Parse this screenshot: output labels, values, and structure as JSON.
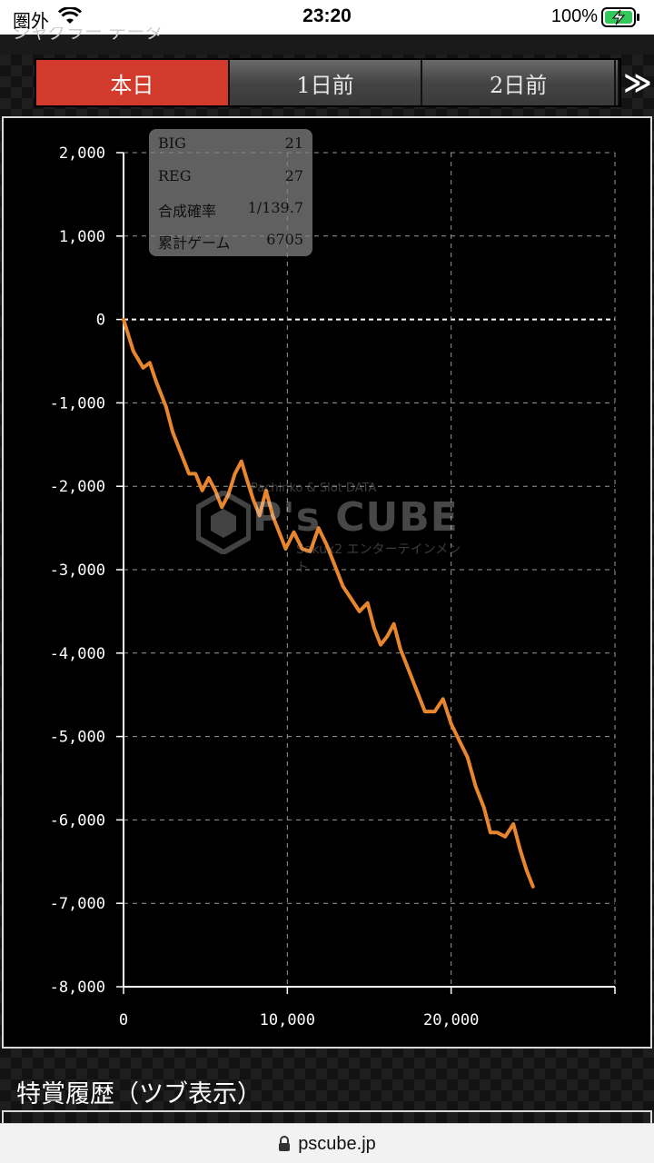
{
  "status_bar": {
    "carrier": "圏外",
    "time": "23:20",
    "battery_pct": "100%"
  },
  "top_strip": {
    "text": "ジャグラー データ"
  },
  "tabs": [
    {
      "label": "本日",
      "active": true
    },
    {
      "label": "1日前",
      "active": false
    },
    {
      "label": "2日前",
      "active": false
    }
  ],
  "tab_next_label": "≫",
  "info": {
    "big_label": "BIG",
    "big_value": "21",
    "reg_label": "REG",
    "reg_value": "27",
    "prob_label": "合成確率",
    "prob_value": "1/139.7",
    "games_label": "累計ゲーム",
    "games_value": "6705"
  },
  "watermark": {
    "top": "Pachinko & Slot DATA",
    "logo": "P's CUBE",
    "bottom": "Sakux2 エンターテインメント"
  },
  "section_title": "特賞履歴（ツブ表示）",
  "url": "pscube.jp",
  "colors": {
    "active_tab": "#d23a2c",
    "line": "#e8862e"
  },
  "chart_data": {
    "type": "line",
    "title": "",
    "xlabel": "",
    "ylabel": "",
    "xlim": [
      0,
      30000
    ],
    "ylim": [
      -8000,
      2000
    ],
    "x_ticks": [
      0,
      10000,
      20000
    ],
    "x_tick_labels": [
      "0",
      "10,000",
      "20,000"
    ],
    "y_ticks": [
      2000,
      1000,
      0,
      -1000,
      -2000,
      -3000,
      -4000,
      -5000,
      -6000,
      -7000,
      -8000
    ],
    "y_tick_labels": [
      "2,000",
      "1,000",
      "0",
      "-1,000",
      "-2,000",
      "-3,000",
      "-4,000",
      "-5,000",
      "-6,000",
      "-7,000",
      "-8,000"
    ],
    "grid": true,
    "series": [
      {
        "x": [
          0,
          600,
          1200,
          1600,
          2000,
          2600,
          3000,
          3600,
          4000,
          4400,
          4800,
          5200,
          5600,
          6000,
          6400,
          6800,
          7200,
          7500,
          7900,
          8300,
          8700,
          9100,
          9500,
          9900,
          10400,
          10900,
          11400,
          11900,
          12400,
          12900,
          13400,
          13900,
          14400,
          14900,
          15300,
          15700,
          16100,
          16500,
          16900,
          17400,
          17900,
          18400,
          19000,
          19500,
          20000,
          20500,
          21000,
          21500,
          22000,
          22400,
          22800,
          23300,
          23800,
          24200,
          24600,
          25000
        ],
        "y": [
          0,
          -380,
          -580,
          -520,
          -750,
          -1050,
          -1350,
          -1650,
          -1850,
          -1850,
          -2050,
          -1900,
          -2050,
          -2250,
          -2100,
          -1850,
          -1700,
          -1900,
          -2150,
          -2350,
          -2050,
          -2350,
          -2550,
          -2750,
          -2550,
          -2750,
          -2780,
          -2500,
          -2700,
          -2950,
          -3200,
          -3350,
          -3500,
          -3400,
          -3700,
          -3900,
          -3800,
          -3650,
          -3950,
          -4200,
          -4450,
          -4700,
          -4700,
          -4550,
          -4850,
          -5050,
          -5250,
          -5600,
          -5850,
          -6150,
          -6150,
          -6200,
          -6050,
          -6350,
          -6600,
          -6800
        ]
      }
    ]
  }
}
